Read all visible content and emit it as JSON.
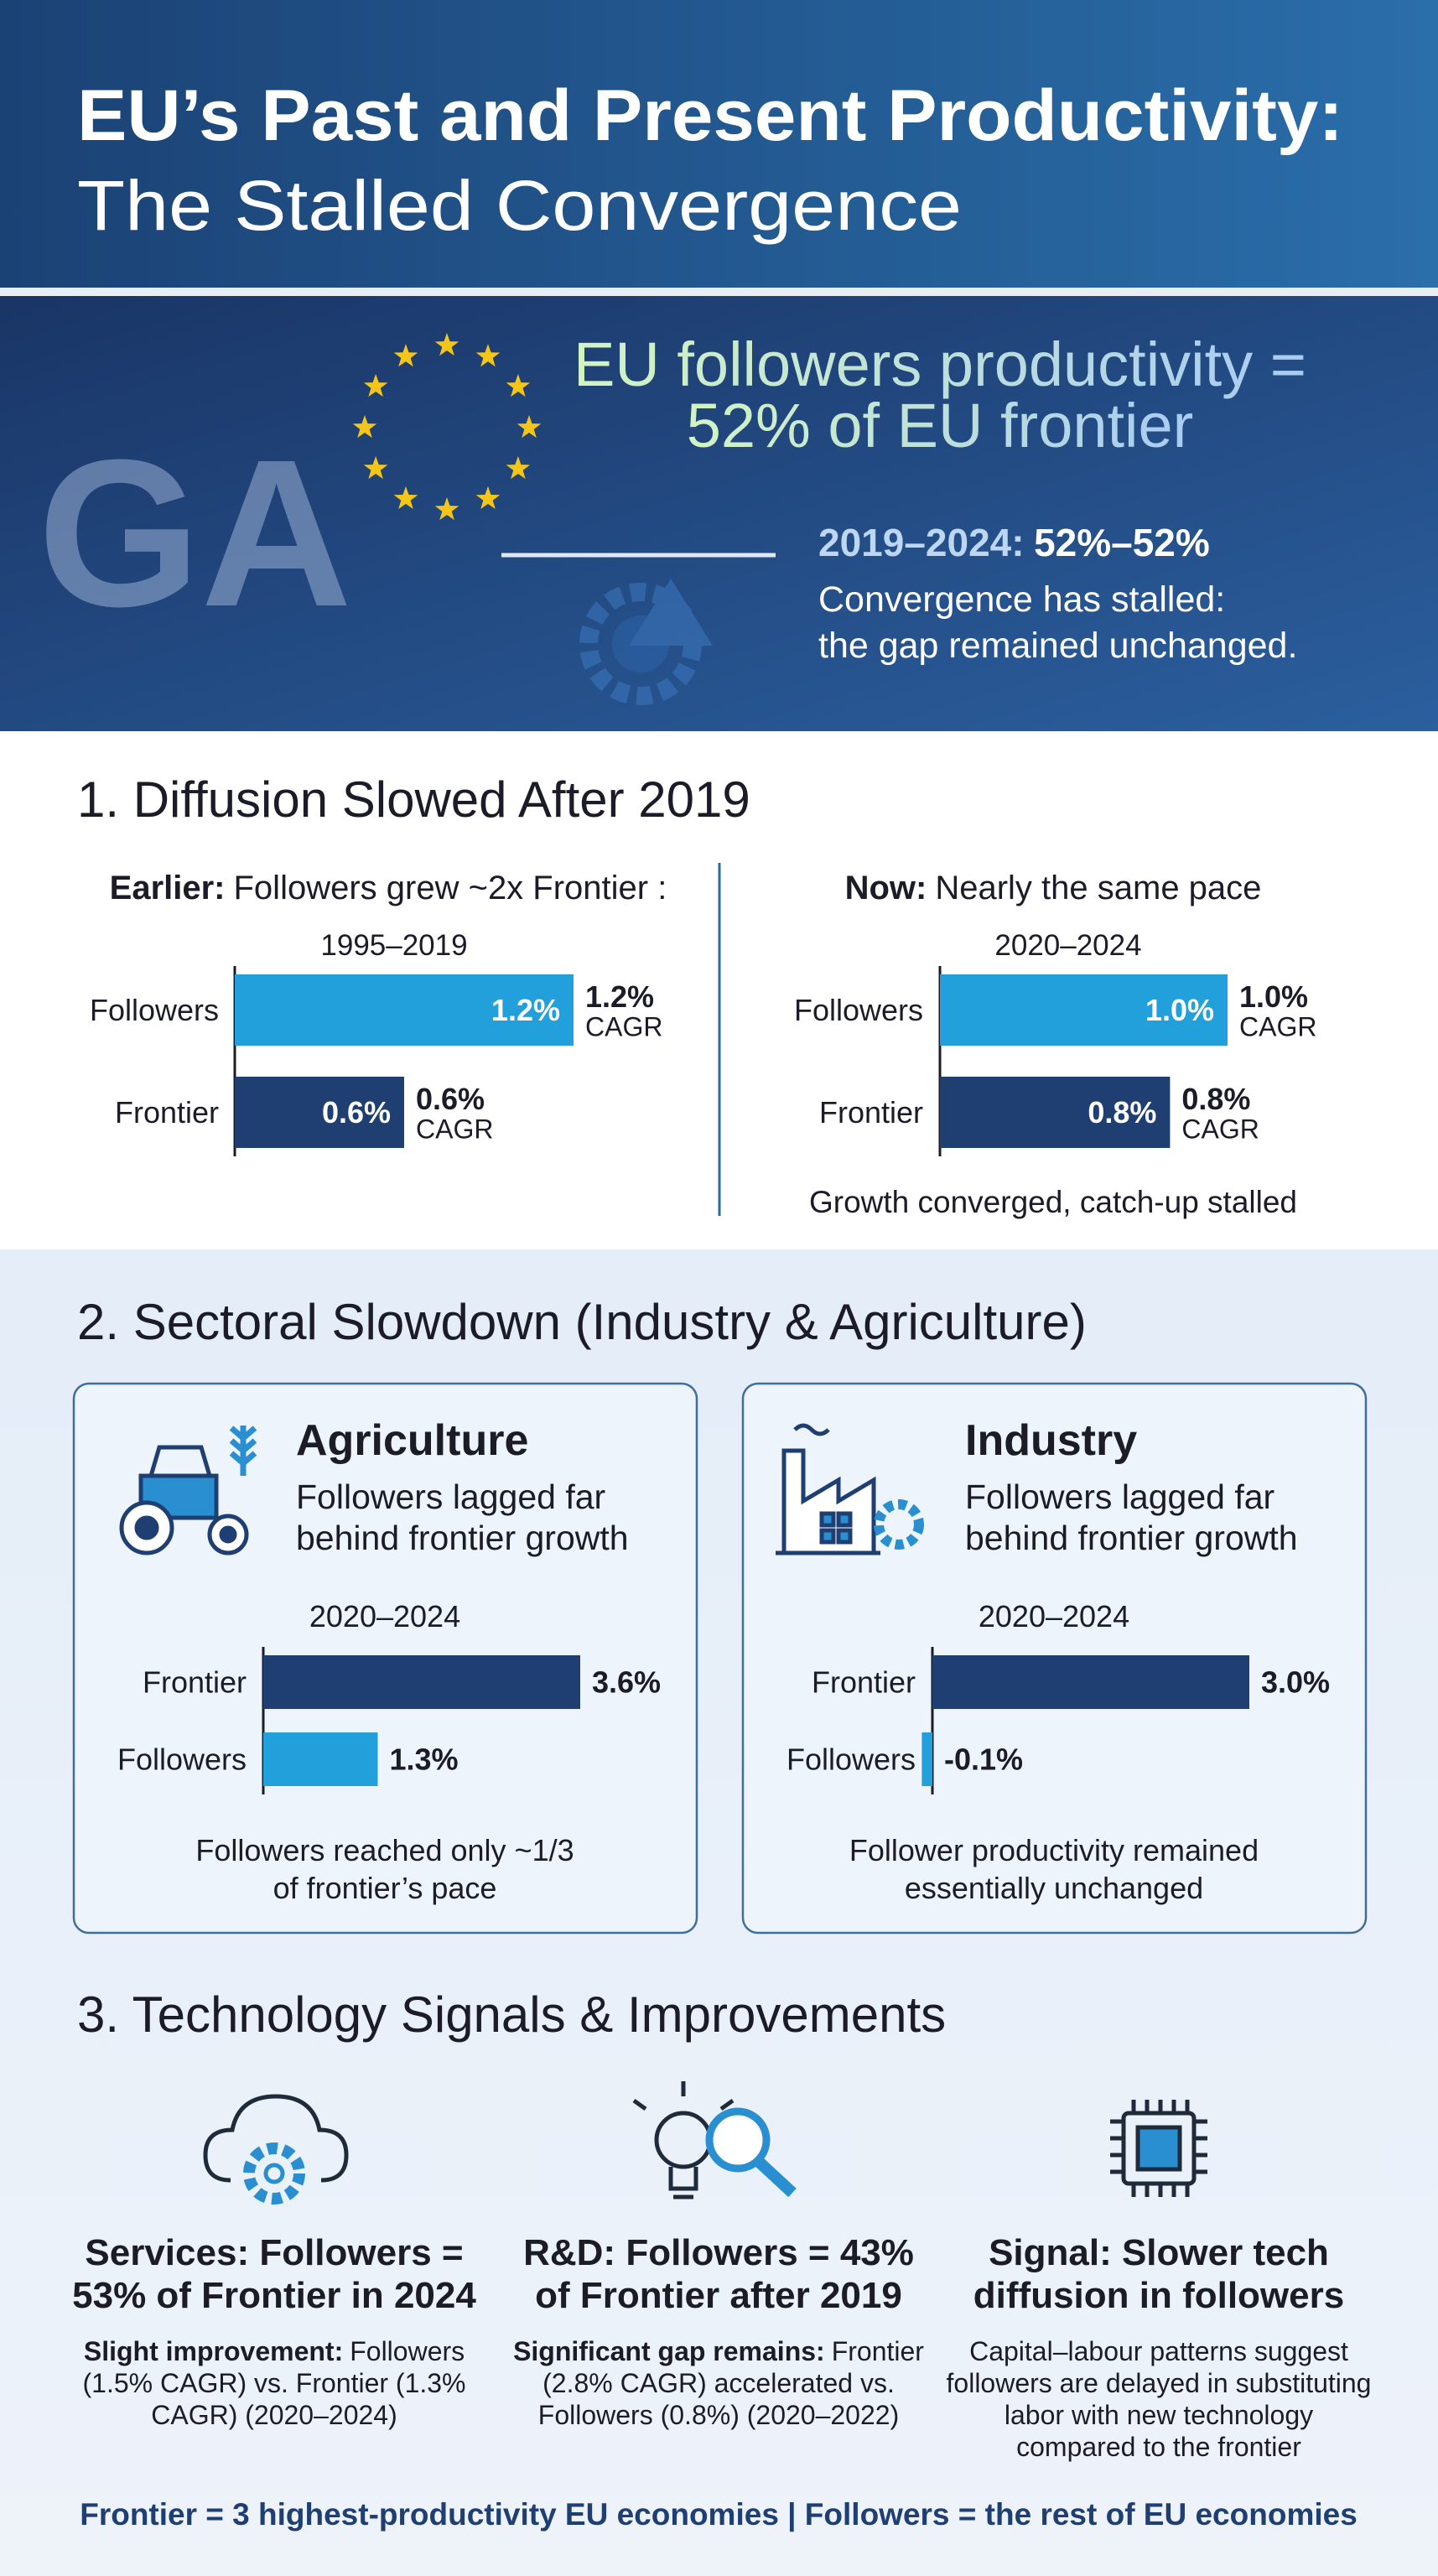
{
  "header": {
    "title": "EU’s Past and Present Productivity:",
    "subtitle": "The Stalled Convergence"
  },
  "banner": {
    "logo": "GA",
    "headline": [
      "EU followers productivity =",
      "52% of EU frontier"
    ],
    "period": "2019–2024:",
    "range": "52%–52%",
    "note": [
      "Convergence has stalled:",
      "the gap remained unchanged."
    ]
  },
  "section1": {
    "heading": "1. Diffusion Slowed After 2019",
    "panels": [
      {
        "type": "bar",
        "label_bold": "Earlier:",
        "label": "Followers grew ~2x Frontier :",
        "period": "1995–2019",
        "categories": [
          "Followers",
          "Frontier"
        ],
        "values": [
          1.2,
          0.6
        ],
        "value_labels": [
          "1.2%",
          "0.6%"
        ],
        "unit": "CAGR",
        "colors": [
          "#22a0dc",
          "#1f3f73"
        ]
      },
      {
        "type": "bar",
        "label_bold": "Now:",
        "label": "Nearly the same pace",
        "period": "2020–2024",
        "categories": [
          "Followers",
          "Frontier"
        ],
        "values": [
          1.0,
          0.8
        ],
        "value_labels": [
          "1.0%",
          "0.8%"
        ],
        "unit": "CAGR",
        "colors": [
          "#22a0dc",
          "#1f3f73"
        ],
        "note": "Growth converged, catch-up stalled"
      }
    ]
  },
  "section2": {
    "heading": "2. Sectoral Slowdown (Industry & Agriculture)",
    "cards": [
      {
        "type": "bar",
        "title": "Agriculture",
        "subtitle": [
          "Followers lagged far",
          "behind frontier growth"
        ],
        "period": "2020–2024",
        "categories": [
          "Frontier",
          "Followers"
        ],
        "values": [
          3.6,
          1.3
        ],
        "value_labels": [
          "3.6%",
          "1.3%"
        ],
        "colors": [
          "#1f3f73",
          "#22a0dc"
        ],
        "note": [
          "Followers reached only ~1/3",
          "of frontier’s pace"
        ]
      },
      {
        "type": "bar",
        "title": "Industry",
        "subtitle": [
          "Followers lagged far",
          "behind frontier growth"
        ],
        "period": "2020–2024",
        "categories": [
          "Frontier",
          "Followers"
        ],
        "values": [
          3.0,
          -0.1
        ],
        "value_labels": [
          "3.0%",
          "-0.1%"
        ],
        "colors": [
          "#1f3f73",
          "#22a0dc"
        ],
        "note": [
          "Follower productivity remained",
          "essentially unchanged"
        ]
      }
    ]
  },
  "section3": {
    "heading": "3. Technology Signals & Improvements",
    "items": [
      {
        "title": [
          "Services: Followers =",
          "53% of Frontier in 2024"
        ],
        "body_bold": "Slight improvement:",
        "body": [
          "Followers",
          "(1.5% CAGR) vs. Frontier (1.3%",
          "CAGR) (2020–2024)"
        ]
      },
      {
        "title": [
          "R&D: Followers = 43%",
          "of Frontier after 2019"
        ],
        "body_bold": "Significant gap remains:",
        "body": [
          "Frontier",
          "(2.8% CAGR) accelerated vs.",
          "Followers (0.8%) (2020–2022)"
        ]
      },
      {
        "title": [
          "Signal: Slower tech",
          "diffusion in followers"
        ],
        "body": [
          "Capital–labour patterns suggest",
          "followers are delayed in substituting",
          "labor with new technology",
          "compared to the frontier"
        ]
      }
    ]
  },
  "footer": "Frontier = 3 highest-productivity EU economies | Followers = the rest of EU economies"
}
